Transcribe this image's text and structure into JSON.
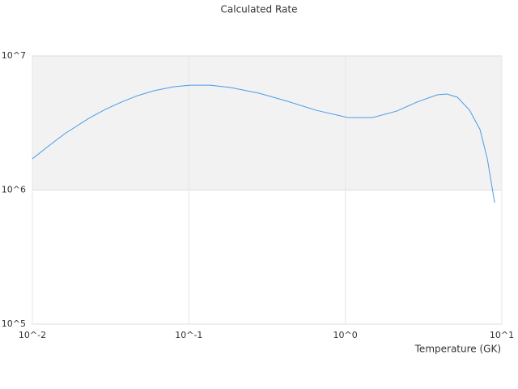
{
  "chart_data": {
    "type": "line",
    "title": "Calculated Rate",
    "x_label": "Temperature (GK)",
    "xlog": true,
    "ylog": true,
    "xlim": [
      0.01,
      10
    ],
    "ylim": [
      100000,
      10000000
    ],
    "xticks": [
      {
        "value": 0.01,
        "label": "10^-2"
      },
      {
        "value": 0.1,
        "label": "10^-1"
      },
      {
        "value": 1,
        "label": "10^0"
      },
      {
        "value": 10,
        "label": "10^1"
      }
    ],
    "yticks": [
      {
        "value": 100000,
        "label": "10^5"
      },
      {
        "value": 1000000,
        "label": "10^6"
      },
      {
        "value": 10000000,
        "label": "10^7"
      }
    ],
    "series": [
      {
        "color": "#4a9be8",
        "x": [
          0.01,
          0.0127,
          0.0161,
          0.023,
          0.0292,
          0.0371,
          0.0471,
          0.0597,
          0.0804,
          0.102,
          0.137,
          0.185,
          0.281,
          0.427,
          0.647,
          1.04,
          1.49,
          2.13,
          2.87,
          3.86,
          4.46,
          5.2,
          6.22,
          7.26,
          8.08,
          9.0
        ],
        "values": [
          1710000,
          2130000,
          2630000,
          3430000,
          3990000,
          4530000,
          5060000,
          5500000,
          5890000,
          6050000,
          6050000,
          5810000,
          5270000,
          4590000,
          3940000,
          3470000,
          3470000,
          3880000,
          4530000,
          5130000,
          5200000,
          4920000,
          3940000,
          2820000,
          1710000,
          806000
        ]
      }
    ]
  }
}
